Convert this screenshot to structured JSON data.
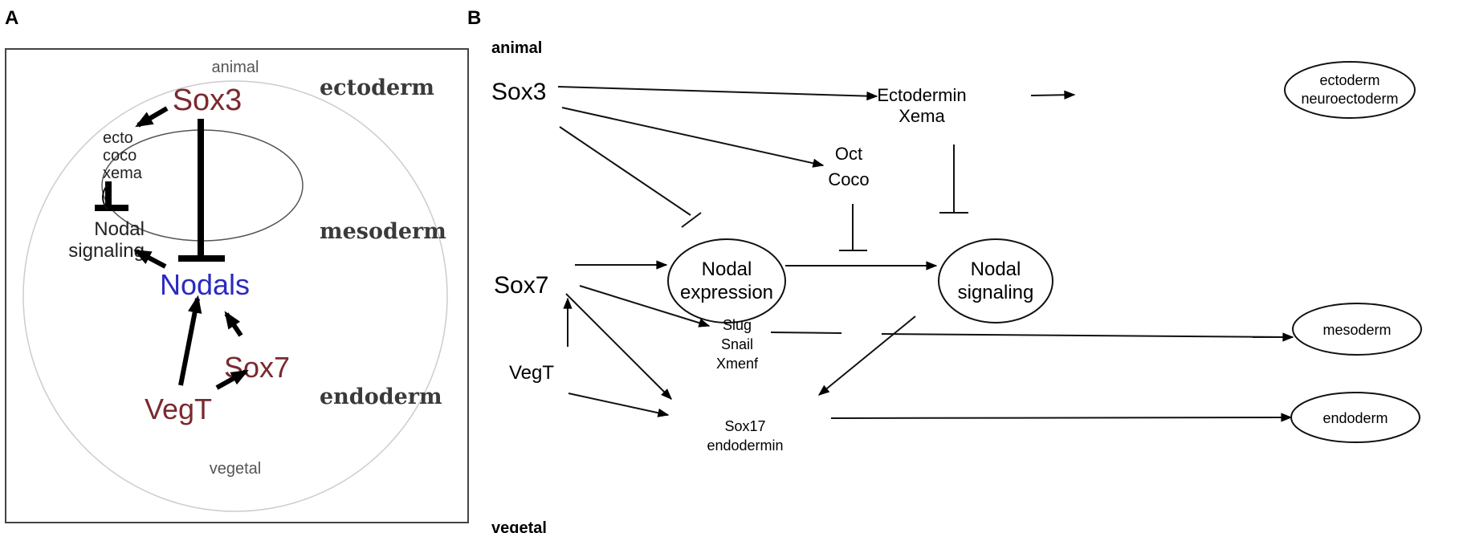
{
  "panel_a": {
    "label": "A",
    "animal": "animal",
    "vegetal": "vegetal",
    "zones": [
      "ectoderm",
      "mesoderm",
      "endoderm"
    ],
    "nodes": {
      "sox3": "Sox3",
      "ecto_lines": [
        "ecto",
        "coco",
        "xema"
      ],
      "nodal_signaling_lines": [
        "Nodal",
        "signaling"
      ],
      "nodals": "Nodals",
      "sox7": "Sox7",
      "vegt": "VegT"
    },
    "colors": {
      "factor": "#7a2a2e",
      "nodals": "#2a2ac0",
      "zone": "#3a3a3a"
    }
  },
  "panel_b": {
    "label": "B",
    "animal": "animal",
    "vegetal": "vegetal",
    "nodes": {
      "sox3": "Sox3",
      "ectodermin_lines": [
        "Ectodermin",
        "Xema"
      ],
      "ectoderm_lines": [
        "ectoderm",
        "neuroectoderm"
      ],
      "oct_lines": [
        "Oct",
        "Coco"
      ],
      "nodal_expression_lines": [
        "Nodal",
        "expression"
      ],
      "nodal_signaling_lines": [
        "Nodal",
        "signaling"
      ],
      "sox7": "Sox7",
      "slug_lines": [
        "Slug",
        "Snail",
        "Xmenf"
      ],
      "vegt": "VegT",
      "sox17_lines": [
        "Sox17",
        "endodermin"
      ],
      "mesoderm": "mesoderm",
      "endoderm": "endoderm"
    }
  }
}
